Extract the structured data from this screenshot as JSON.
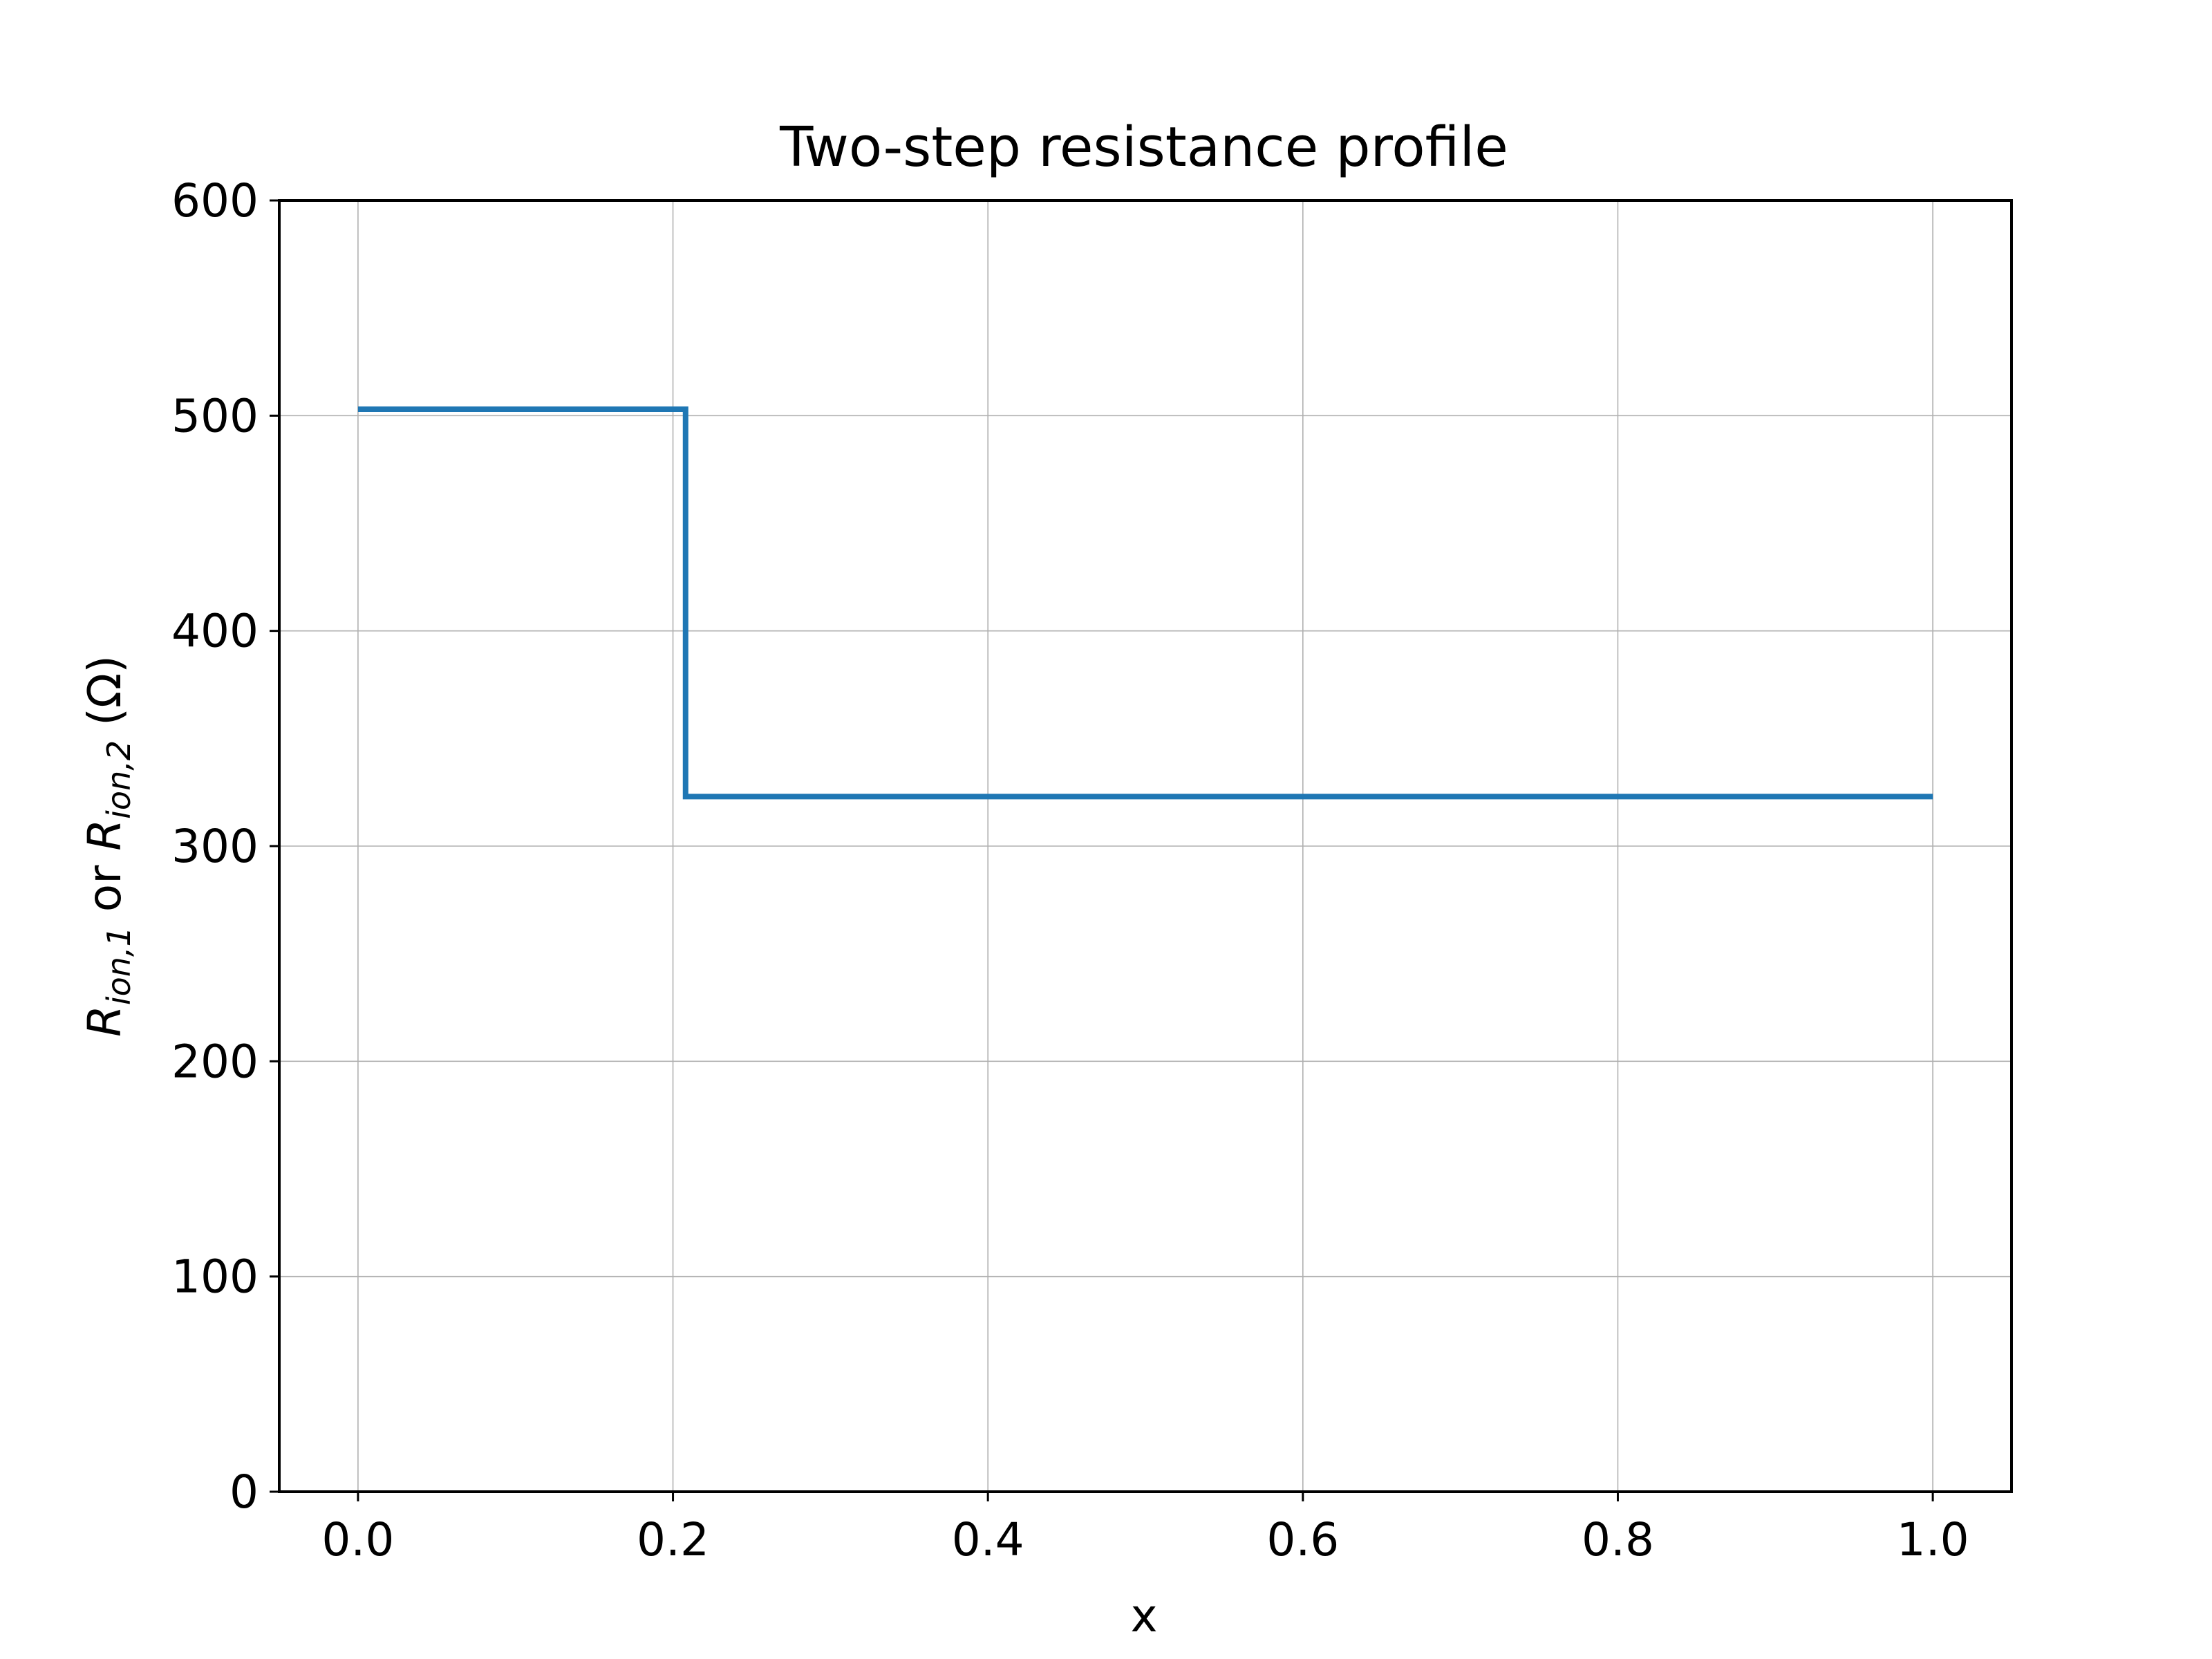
{
  "chart_data": {
    "type": "line",
    "title": "Two-step resistance profile",
    "xlabel": "x",
    "ylabel": {
      "parts": [
        {
          "text": "R",
          "style": "italic",
          "sub": false
        },
        {
          "text": "ion,1",
          "style": "italic",
          "sub": true
        },
        {
          "text": " or ",
          "style": "normal",
          "sub": false
        },
        {
          "text": "R",
          "style": "italic",
          "sub": false
        },
        {
          "text": "ion,2",
          "style": "italic",
          "sub": true
        },
        {
          "text": " (Ω)",
          "style": "normal",
          "sub": false
        }
      ]
    },
    "xlim": [
      -0.05,
      1.05
    ],
    "ylim": [
      0,
      600
    ],
    "xticks": [
      0.0,
      0.2,
      0.4,
      0.6,
      0.8,
      1.0
    ],
    "xtick_labels": [
      "0.0",
      "0.2",
      "0.4",
      "0.6",
      "0.8",
      "1.0"
    ],
    "yticks": [
      0,
      100,
      200,
      300,
      400,
      500,
      600
    ],
    "ytick_labels": [
      "0",
      "100",
      "200",
      "300",
      "400",
      "500",
      "600"
    ],
    "grid": true,
    "series": [
      {
        "color": "#1f77b4",
        "points": [
          [
            0.0,
            503
          ],
          [
            0.208,
            503
          ],
          [
            0.208,
            323
          ],
          [
            1.0,
            323
          ]
        ]
      }
    ]
  }
}
